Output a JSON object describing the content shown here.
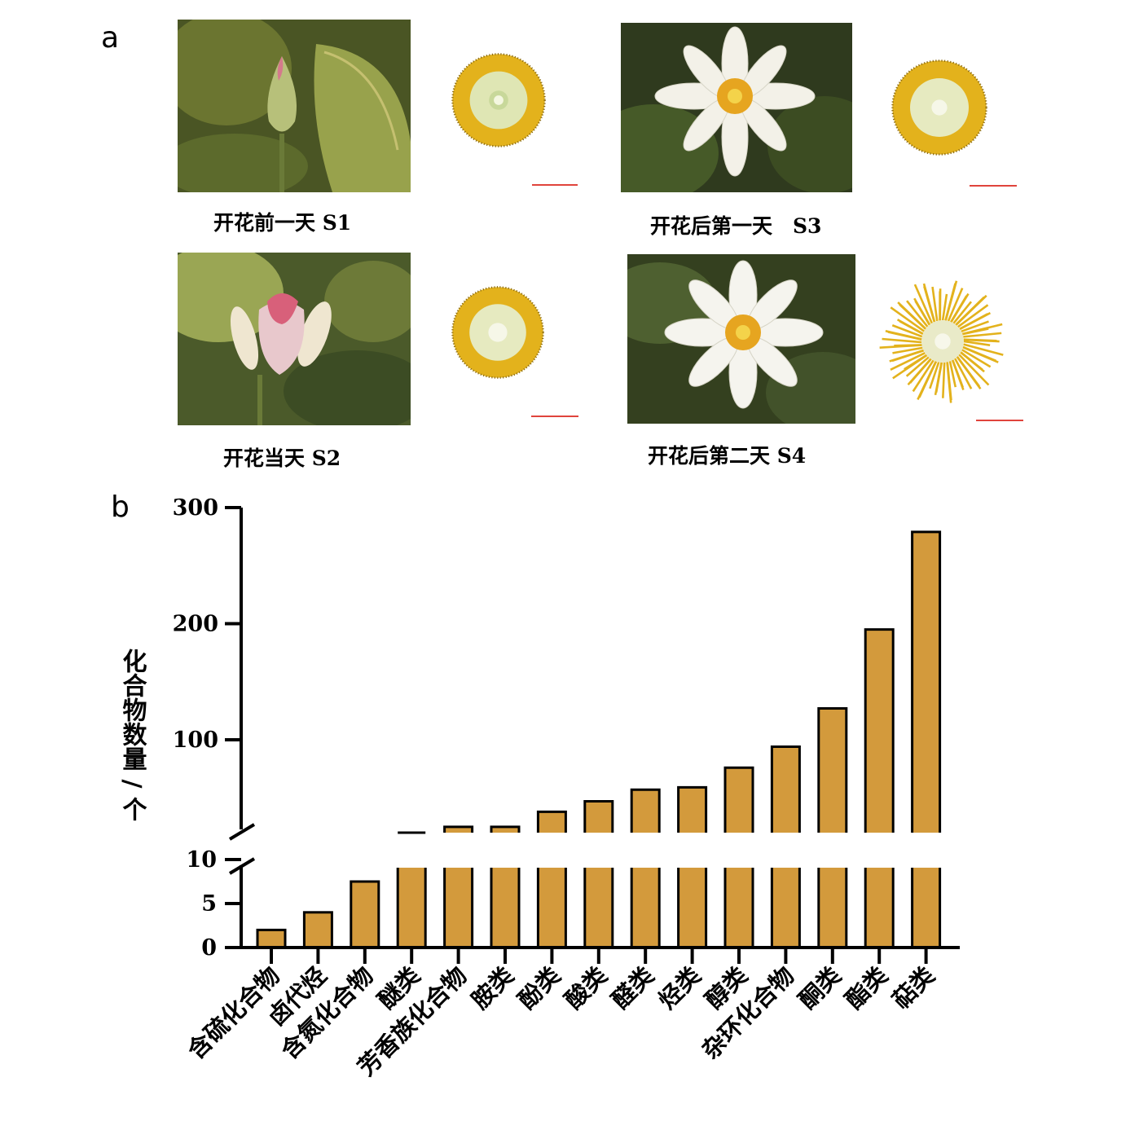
{
  "panels": {
    "a_label": "a",
    "b_label": "b"
  },
  "stages": [
    {
      "caption": "开花前一天 S1",
      "photo_icon": "lotus-bud-photo",
      "receptacle_icon": "stamen-ring-icon"
    },
    {
      "caption": "开花后第一天　S3",
      "photo_icon": "white-lotus-open-photo",
      "receptacle_icon": "stamen-ring-icon"
    },
    {
      "caption": "开花当天 S2",
      "photo_icon": "pink-lotus-half-open-photo",
      "receptacle_icon": "stamen-ring-icon"
    },
    {
      "caption": "开花后第二天 S4",
      "photo_icon": "white-lotus-full-open-photo",
      "receptacle_icon": "stamen-spread-icon"
    }
  ],
  "colors": {
    "bar": "#d39a3c",
    "bar_stroke": "#000000",
    "scale_bar": "#e0443c",
    "leaf_dark": "#3f4a22",
    "leaf_light": "#8e9a4a",
    "stamen": "#e3b21c"
  },
  "chart_data": {
    "type": "bar",
    "title": "",
    "xlabel": "",
    "ylabel": "化合物数量 / 个",
    "categories": [
      "含硫化合物",
      "卤代烃",
      "含氮化合物",
      "醚类",
      "芳香族化合物",
      "胺类",
      "酚类",
      "酸类",
      "醛类",
      "烃类",
      "醇类",
      "杂环化合物",
      "酮类",
      "酯类",
      "萜类"
    ],
    "values": [
      2,
      4,
      7.5,
      20,
      25,
      25,
      38,
      47,
      57,
      59,
      76,
      94,
      127,
      195,
      279
    ],
    "ylim": [
      0,
      300
    ],
    "axis_break": {
      "lower_range": [
        0,
        10
      ],
      "upper_range": [
        20,
        300
      ]
    },
    "yticks_lower": [
      "0",
      "5",
      "10"
    ],
    "yticks_upper": [
      "100",
      "200",
      "300"
    ],
    "grid": false,
    "legend": "none"
  }
}
